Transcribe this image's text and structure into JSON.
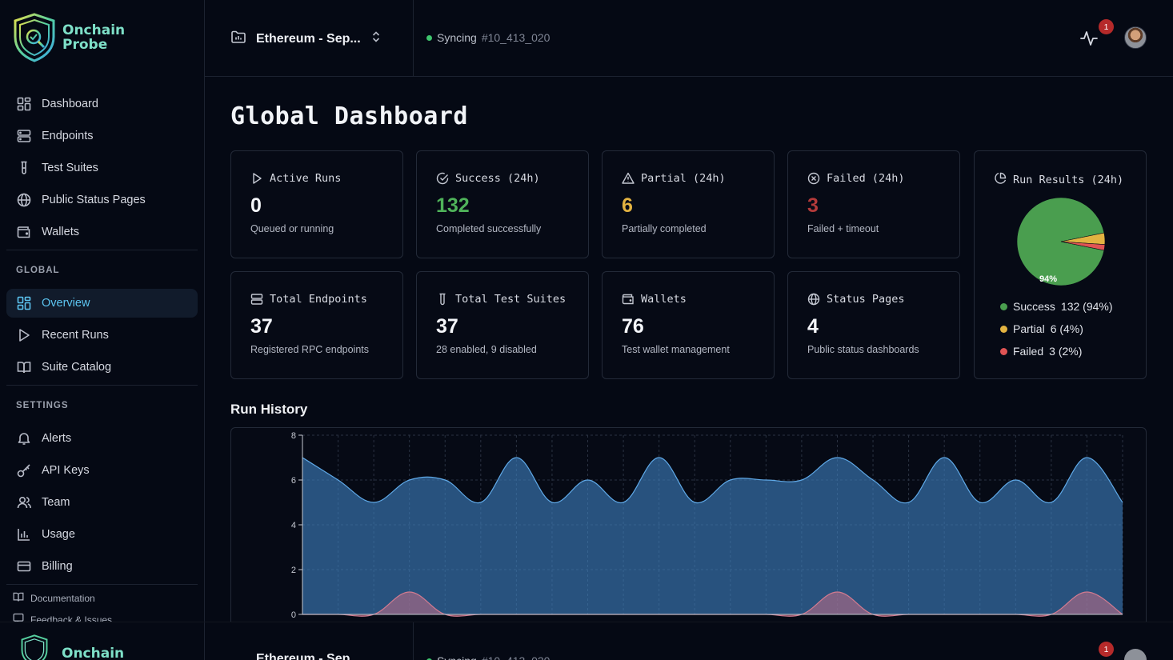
{
  "brand": {
    "line1": "Onchain",
    "line2": "Probe"
  },
  "sidebar": {
    "main_items": [
      {
        "label": "Dashboard",
        "icon": "grid-icon"
      },
      {
        "label": "Endpoints",
        "icon": "server-icon"
      },
      {
        "label": "Test Suites",
        "icon": "test-tube-icon"
      },
      {
        "label": "Public Status Pages",
        "icon": "globe-icon"
      },
      {
        "label": "Wallets",
        "icon": "wallet-icon"
      }
    ],
    "global_label": "GLOBAL",
    "global_items": [
      {
        "label": "Overview",
        "icon": "grid-icon",
        "active": true
      },
      {
        "label": "Recent Runs",
        "icon": "play-icon"
      },
      {
        "label": "Suite Catalog",
        "icon": "book-icon"
      }
    ],
    "settings_label": "SETTINGS",
    "settings_items": [
      {
        "label": "Alerts",
        "icon": "bell-icon"
      },
      {
        "label": "API Keys",
        "icon": "key-icon"
      },
      {
        "label": "Team",
        "icon": "users-icon"
      },
      {
        "label": "Usage",
        "icon": "bar-chart-icon"
      },
      {
        "label": "Billing",
        "icon": "credit-card-icon"
      }
    ],
    "footer": {
      "documentation": "Documentation",
      "feedback": "Feedback & Issues"
    }
  },
  "header": {
    "network": "Ethereum - Sep...",
    "sync_status": "Syncing",
    "sync_block": "#10_413_020",
    "notification_count": "1"
  },
  "page_title": "Global Dashboard",
  "cards": [
    {
      "title": "Active Runs",
      "value": "0",
      "sub": "Queued or running",
      "icon": "play-icon"
    },
    {
      "title": "Success (24h)",
      "value": "132",
      "sub": "Completed successfully",
      "icon": "check-circle-icon"
    },
    {
      "title": "Partial (24h)",
      "value": "6",
      "sub": "Partially completed",
      "icon": "warning-icon"
    },
    {
      "title": "Failed (24h)",
      "value": "3",
      "sub": "Failed + timeout",
      "icon": "x-circle-icon"
    },
    {
      "title": "Total Endpoints",
      "value": "37",
      "sub": "Registered RPC endpoints",
      "icon": "server-icon"
    },
    {
      "title": "Total Test Suites",
      "value": "37",
      "sub": "28 enabled, 9 disabled",
      "icon": "test-tube-icon"
    },
    {
      "title": "Wallets",
      "value": "76",
      "sub": "Test wallet management",
      "icon": "wallet-icon"
    },
    {
      "title": "Status Pages",
      "value": "4",
      "sub": "Public status dashboards",
      "icon": "globe-icon"
    }
  ],
  "run_results": {
    "title": "Run Results (24h)",
    "slice_label": "94%",
    "legend": [
      {
        "name": "Success",
        "value": "132 (94%)",
        "color": "#4a9e4f"
      },
      {
        "name": "Partial",
        "value": "6 (4%)",
        "color": "#e3b341"
      },
      {
        "name": "Failed",
        "value": "3 (2%)",
        "color": "#e05454"
      }
    ]
  },
  "run_history_title": "Run History",
  "chart_data": [
    {
      "type": "pie",
      "categories": [
        "Success",
        "Partial",
        "Failed"
      ],
      "values": [
        132,
        6,
        3
      ],
      "colors": [
        "#4a9e4f",
        "#e3b341",
        "#e05454"
      ]
    },
    {
      "type": "area",
      "x": [
        0,
        1,
        2,
        3,
        4,
        5,
        6,
        7,
        8,
        9,
        10,
        11,
        12,
        13,
        14,
        15,
        16,
        17,
        18,
        19,
        20,
        21,
        22,
        23
      ],
      "series": [
        {
          "values": [
            7,
            6,
            5,
            6,
            6,
            5,
            7,
            5,
            6,
            5,
            7,
            5,
            6,
            6,
            6,
            7,
            6,
            5,
            7,
            5,
            6,
            5,
            7,
            5
          ],
          "color": "#3d7fbf"
        },
        {
          "values": [
            0,
            0,
            0,
            1,
            0,
            0,
            0,
            0,
            0,
            0,
            0,
            0,
            0,
            0,
            0,
            1,
            0,
            0,
            0,
            0,
            0,
            0,
            1,
            0
          ],
          "color": "#b0607a"
        }
      ],
      "ylim": [
        0,
        8
      ],
      "yticks": [
        "0",
        "2",
        "4",
        "6",
        "8"
      ],
      "grid": true
    }
  ]
}
